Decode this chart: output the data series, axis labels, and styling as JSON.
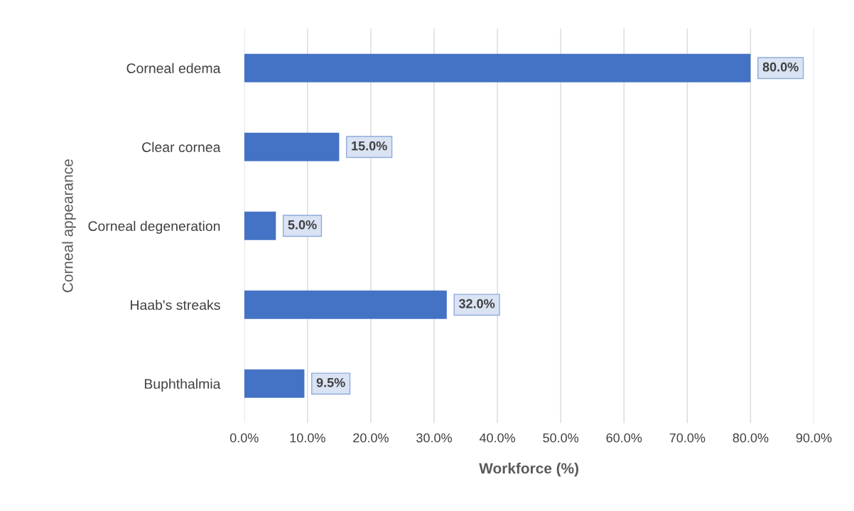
{
  "chart_data": {
    "type": "bar",
    "orientation": "horizontal",
    "xlabel": "Workforce (%)",
    "ylabel": "Corneal appearance",
    "categories": [
      "Corneal edema",
      "Clear cornea",
      "Corneal degeneration",
      "Haab's streaks",
      "Buphthalmia"
    ],
    "values": [
      80,
      15,
      5,
      32,
      9.5
    ],
    "value_labels": [
      "80.0%",
      "15.0%",
      "5.0%",
      "32.0%",
      "9.5%"
    ],
    "color": "#4472c4",
    "xlim": [
      0,
      90
    ],
    "xticks": [
      {
        "value": 0,
        "label": "0.0%"
      },
      {
        "value": 10,
        "label": "10.0%"
      },
      {
        "value": 20,
        "label": "20.0%"
      },
      {
        "value": 30,
        "label": "30.0%"
      },
      {
        "value": 40,
        "label": "40.0%"
      },
      {
        "value": 50,
        "label": "50.0%"
      },
      {
        "value": 60,
        "label": "60.0%"
      },
      {
        "value": 70,
        "label": "70.0%"
      },
      {
        "value": 80,
        "label": "80.0%"
      },
      {
        "value": 90,
        "label": "90.0%"
      }
    ],
    "grid": "x"
  }
}
